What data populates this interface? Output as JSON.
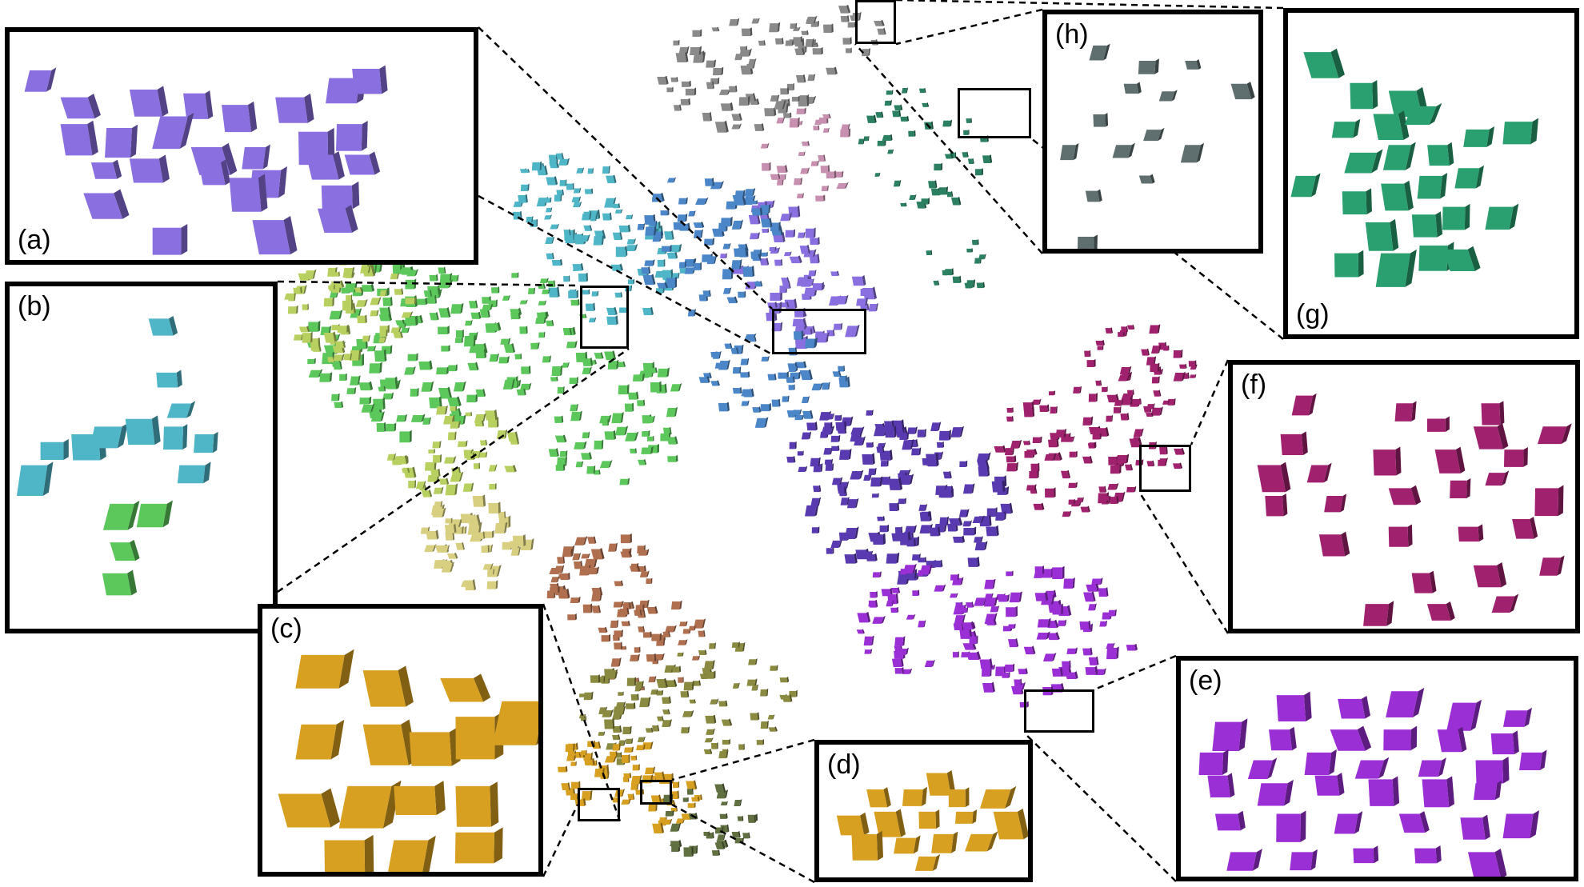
{
  "figure": {
    "panels": [
      {
        "id": "a",
        "label": "(a)",
        "color": "#8a6fe0",
        "label_pos": "bottom"
      },
      {
        "id": "b",
        "label": "(b)",
        "color": "#4fb6c8",
        "color2": "#5cc85c",
        "label_pos": "top"
      },
      {
        "id": "c",
        "label": "(c)",
        "color": "#d8a020",
        "label_pos": "top"
      },
      {
        "id": "d",
        "label": "(d)",
        "color": "#d8a020",
        "label_pos": "top"
      },
      {
        "id": "e",
        "label": "(e)",
        "color": "#9b2fd6",
        "label_pos": "top"
      },
      {
        "id": "f",
        "label": "(f)",
        "color": "#a0226e",
        "label_pos": "top"
      },
      {
        "id": "g",
        "label": "(g)",
        "color": "#2aa070",
        "label_pos": "bottom"
      },
      {
        "id": "h",
        "label": "(h)",
        "color": "#5f6f6f",
        "label_pos": "top"
      }
    ],
    "clusters": [
      {
        "name": "violet-center",
        "color": "#8a6fe0"
      },
      {
        "name": "cyan",
        "color": "#4fb6c8"
      },
      {
        "name": "teal-blue",
        "color": "#4a86c8"
      },
      {
        "name": "green",
        "color": "#5cc85c"
      },
      {
        "name": "yellow-green",
        "color": "#b8d060"
      },
      {
        "name": "pale-yellow",
        "color": "#d8d080"
      },
      {
        "name": "brown",
        "color": "#b07050"
      },
      {
        "name": "olive",
        "color": "#8a8a40"
      },
      {
        "name": "gold",
        "color": "#d8a020"
      },
      {
        "name": "grey-top",
        "color": "#8a8a8a"
      },
      {
        "name": "pink",
        "color": "#c890b0"
      },
      {
        "name": "dark-green",
        "color": "#2a8060"
      },
      {
        "name": "indigo",
        "color": "#5a3ab0"
      },
      {
        "name": "purple",
        "color": "#9b2fd6"
      },
      {
        "name": "magenta",
        "color": "#a0226e"
      },
      {
        "name": "dark-olive",
        "color": "#607040"
      }
    ]
  }
}
